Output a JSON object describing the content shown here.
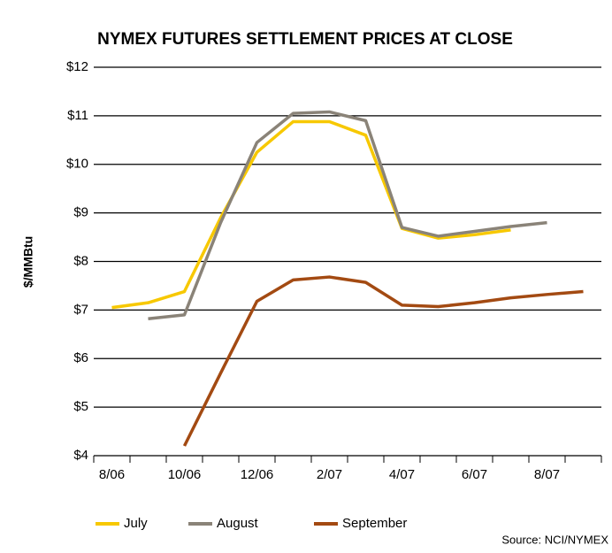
{
  "chart_data": {
    "type": "line",
    "title": "NYMEX FUTURES SETTLEMENT PRICES AT CLOSE",
    "ylabel": "$/MMBtu",
    "source": "Source: NCI/NYMEX",
    "categories": [
      "8/06",
      null,
      "10/06",
      null,
      "12/06",
      null,
      "2/07",
      null,
      "4/07",
      null,
      "6/07",
      null,
      "8/07",
      null
    ],
    "series": [
      {
        "name": "July",
        "color": "#f7c800",
        "values": [
          7.05,
          7.15,
          7.38,
          8.9,
          10.25,
          10.88,
          10.88,
          10.6,
          8.68,
          8.48,
          8.55,
          8.65,
          null,
          null
        ]
      },
      {
        "name": "August",
        "color": "#8a8378",
        "values": [
          null,
          6.82,
          6.9,
          8.8,
          10.45,
          11.05,
          11.08,
          10.9,
          8.7,
          8.52,
          8.62,
          8.72,
          8.8,
          null
        ]
      },
      {
        "name": "September",
        "color": "#a34a12",
        "values": [
          null,
          null,
          4.2,
          5.7,
          7.18,
          7.62,
          7.68,
          7.57,
          7.1,
          7.07,
          7.15,
          7.25,
          7.32,
          7.38
        ]
      }
    ],
    "ylim": [
      4,
      12
    ],
    "yticks": [
      {
        "value": 4,
        "label": "$4"
      },
      {
        "value": 5,
        "label": "$5"
      },
      {
        "value": 6,
        "label": "$6"
      },
      {
        "value": 7,
        "label": "$7"
      },
      {
        "value": 8,
        "label": "$8"
      },
      {
        "value": 9,
        "label": "$9"
      },
      {
        "value": 10,
        "label": "$10"
      },
      {
        "value": 11,
        "label": "$11"
      },
      {
        "value": 12,
        "label": "$12"
      }
    ],
    "grid": true
  }
}
